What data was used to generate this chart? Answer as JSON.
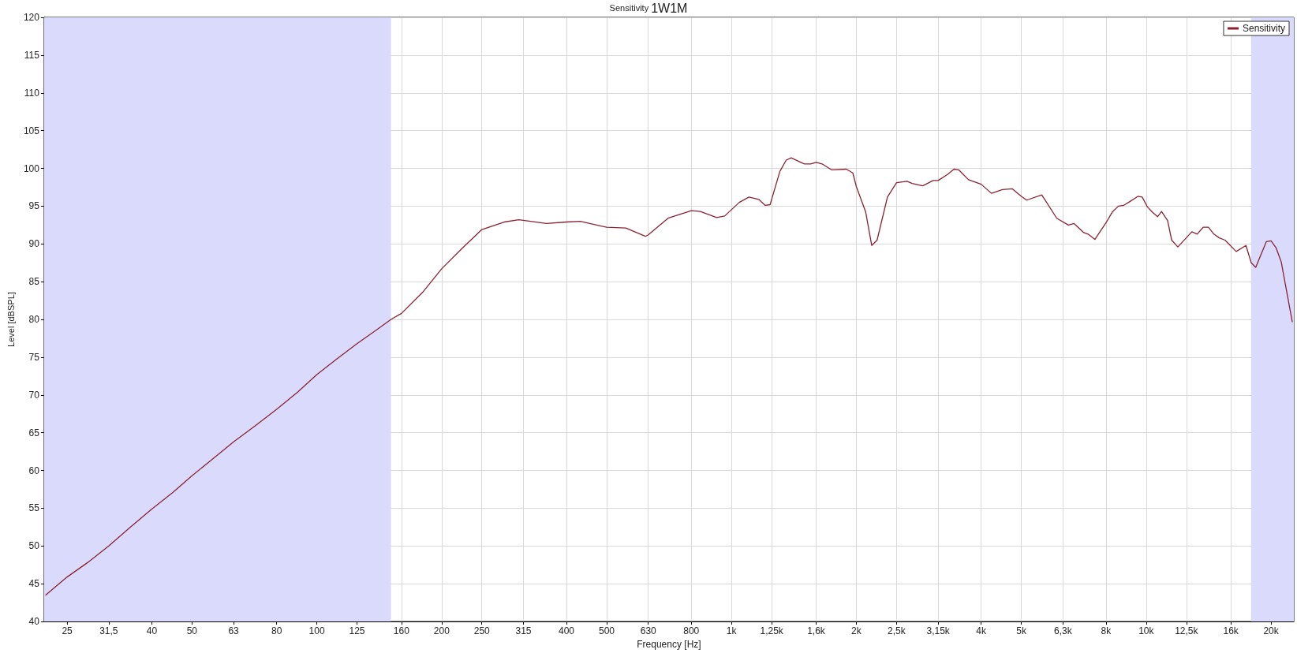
{
  "chart_data": {
    "type": "line",
    "title": "Sensitivity",
    "subtitle": "1W1M",
    "xlabel": "Frequency [Hz]",
    "ylabel": "Level [dBSPL]",
    "log": "x",
    "xlim": [
      22,
      22700
    ],
    "ylim": [
      40,
      120
    ],
    "xticks": [
      25,
      {
        "value": 31.5,
        "label": "31,5"
      },
      40,
      50,
      63,
      80,
      100,
      125,
      160,
      200,
      250,
      315,
      400,
      500,
      630,
      800,
      {
        "value": 1000,
        "label": "1k"
      },
      {
        "value": 1250,
        "label": "1,25k"
      },
      {
        "value": 1600,
        "label": "1,6k"
      },
      {
        "value": 2000,
        "label": "2k"
      },
      {
        "value": 2500,
        "label": "2,5k"
      },
      {
        "value": 3150,
        "label": "3,15k"
      },
      {
        "value": 4000,
        "label": "4k"
      },
      {
        "value": 5000,
        "label": "5k"
      },
      {
        "value": 6300,
        "label": "6,3k"
      },
      {
        "value": 8000,
        "label": "8k"
      },
      {
        "value": 10000,
        "label": "10k"
      },
      {
        "value": 12500,
        "label": "12,5k"
      },
      {
        "value": 16000,
        "label": "16k"
      },
      {
        "value": 20000,
        "label": "20k"
      }
    ],
    "yticks": [
      40,
      45,
      50,
      55,
      60,
      65,
      70,
      75,
      80,
      85,
      90,
      95,
      100,
      105,
      110,
      115,
      120
    ],
    "grid": true,
    "legend": "top right",
    "marker": "none",
    "line_style": "solid",
    "bands": [
      {
        "axis": "x",
        "from": 22,
        "to": 151,
        "color": "#dadbfc"
      },
      {
        "axis": "x",
        "from": 17900,
        "to": 22700,
        "color": "#dadbfc"
      }
    ],
    "series": [
      {
        "name": "Sensitivity",
        "color": "#8b2232",
        "x": [
          22.2,
          25,
          28,
          31.5,
          35.5,
          40,
          45,
          50,
          56,
          63,
          71,
          80,
          90,
          100,
          112,
          125,
          140,
          151,
          160,
          180,
          200,
          225,
          250,
          283,
          307,
          358,
          400,
          432,
          500,
          556,
          620,
          630,
          703,
          800,
          841,
          921,
          963,
          1044,
          1102,
          1163,
          1206,
          1239,
          1308,
          1355,
          1393,
          1497,
          1552,
          1600,
          1653,
          1745,
          1892,
          1961,
          2000,
          2107,
          2178,
          2244,
          2377,
          2500,
          2650,
          2727,
          2891,
          3064,
          3150,
          3317,
          3438,
          3534,
          3729,
          4000,
          4235,
          4503,
          4757,
          5000,
          5150,
          5600,
          6085,
          6490,
          6700,
          7070,
          7240,
          7520,
          8000,
          8280,
          8570,
          8820,
          9130,
          9550,
          9780,
          10070,
          10350,
          10650,
          10890,
          11260,
          11520,
          11920,
          12730,
          12890,
          13270,
          13720,
          14130,
          14560,
          15000,
          15490,
          16480,
          17400,
          17920,
          18370,
          19480,
          20000,
          20560,
          21170,
          22500
        ],
        "values": [
          43.5,
          45.9,
          47.8,
          50.0,
          52.5,
          54.9,
          57.1,
          59.3,
          61.5,
          63.8,
          65.9,
          68.1,
          70.4,
          72.7,
          74.8,
          76.8,
          78.7,
          80.0,
          80.8,
          83.6,
          86.7,
          89.5,
          91.9,
          92.9,
          93.2,
          92.7,
          92.9,
          93.0,
          92.2,
          92.1,
          91.0,
          91.2,
          93.4,
          94.4,
          94.3,
          93.5,
          93.7,
          95.5,
          96.2,
          95.9,
          95.1,
          95.2,
          99.6,
          101.1,
          101.4,
          100.6,
          100.6,
          100.8,
          100.6,
          99.8,
          99.9,
          99.4,
          97.6,
          94.2,
          89.8,
          90.5,
          96.2,
          98.1,
          98.3,
          98.0,
          97.7,
          98.4,
          98.4,
          99.2,
          99.9,
          99.8,
          98.5,
          97.9,
          96.7,
          97.2,
          97.3,
          96.3,
          95.8,
          96.5,
          93.4,
          92.5,
          92.7,
          91.5,
          91.3,
          90.6,
          92.8,
          94.2,
          95.0,
          95.1,
          95.6,
          96.3,
          96.2,
          94.9,
          94.2,
          93.6,
          94.3,
          93.1,
          90.5,
          89.6,
          91.3,
          91.6,
          91.3,
          92.2,
          92.2,
          91.3,
          90.8,
          90.5,
          89.0,
          89.8,
          87.5,
          86.9,
          90.3,
          90.4,
          89.5,
          87.6,
          79.7
        ]
      }
    ]
  }
}
